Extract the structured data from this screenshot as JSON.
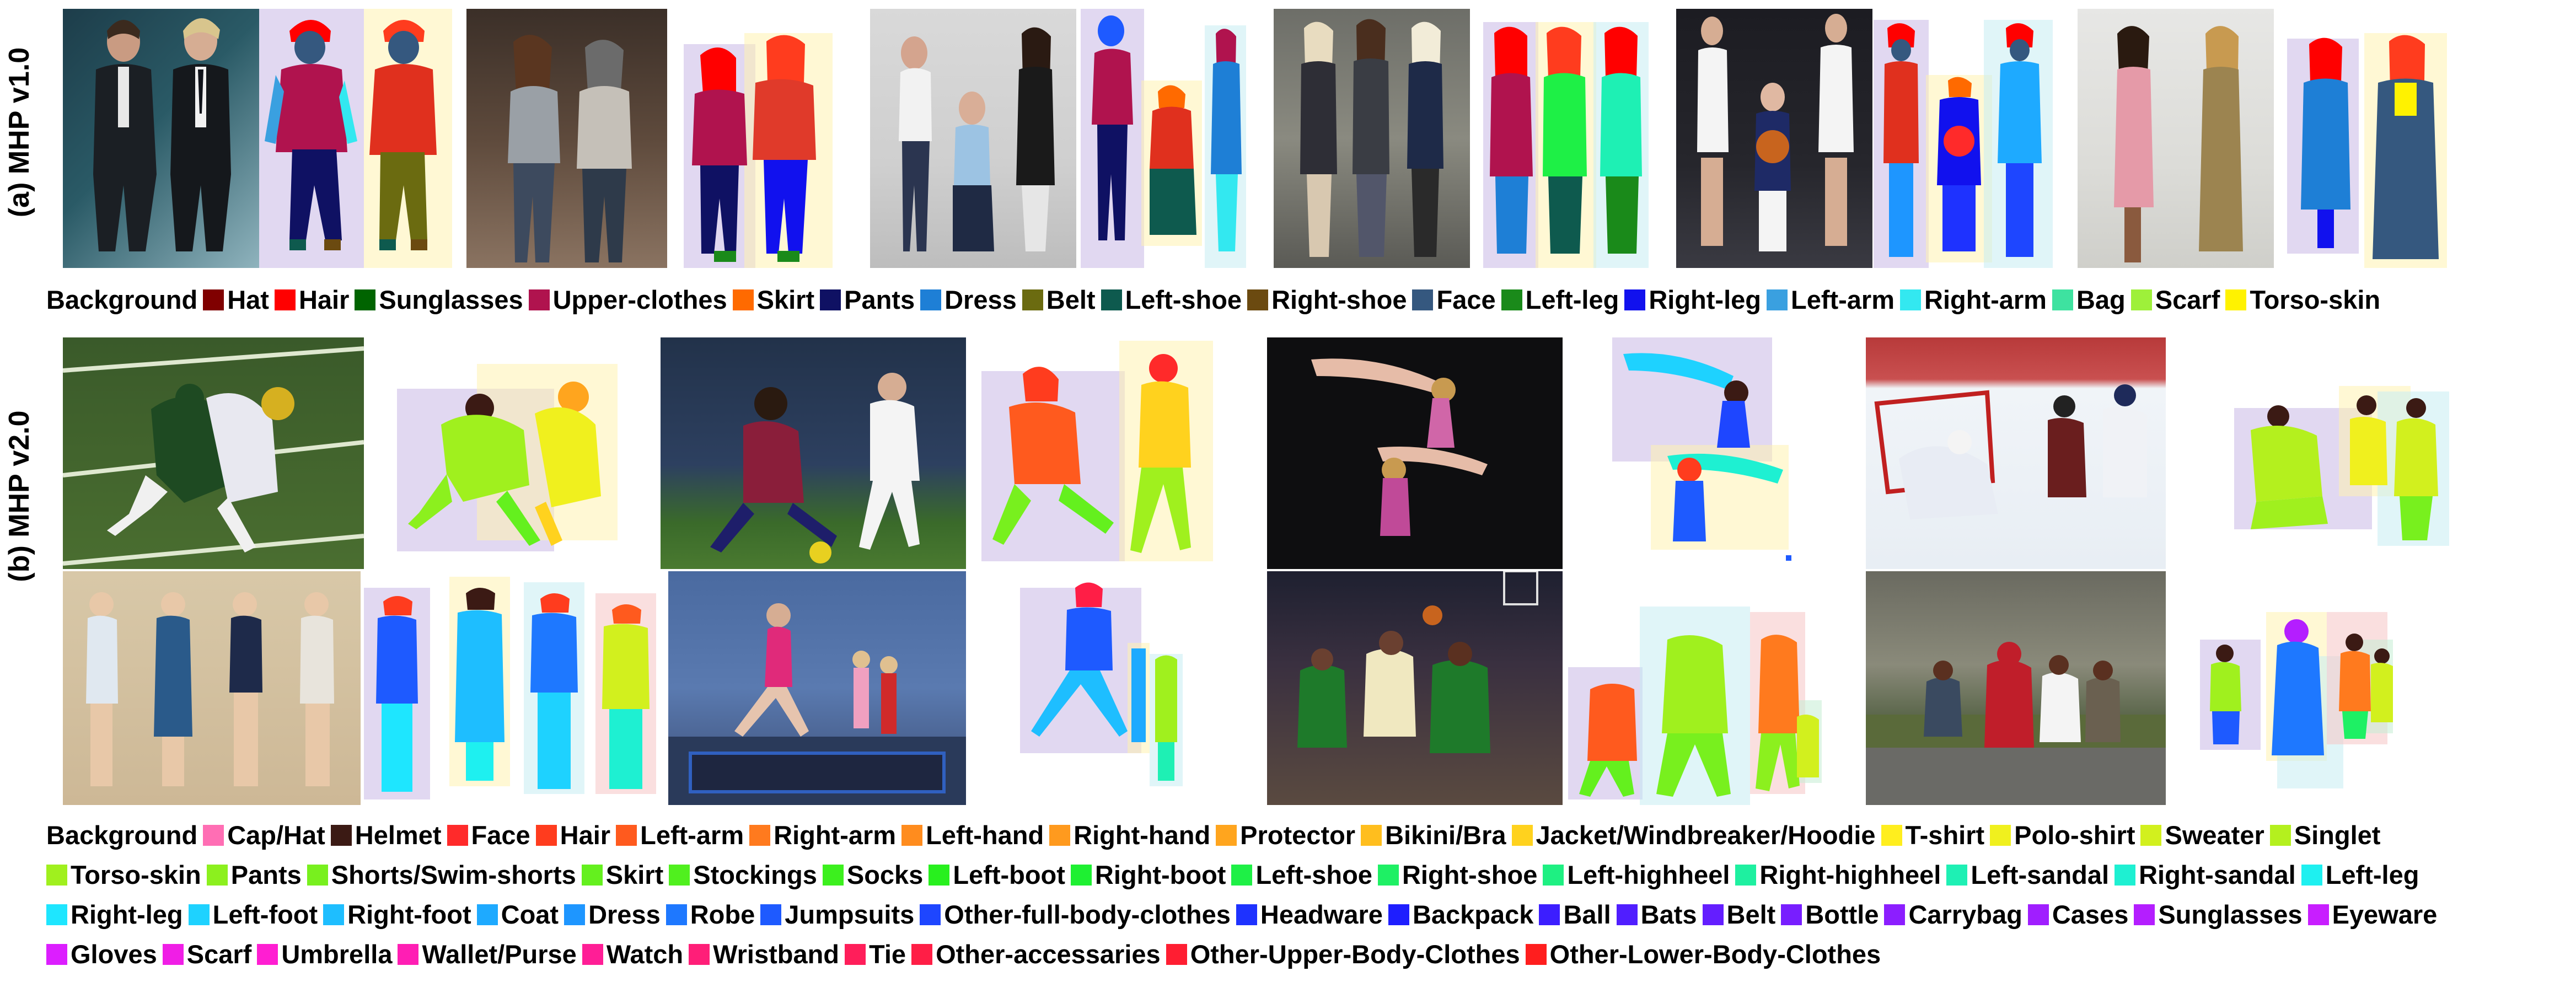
{
  "labels": {
    "v1": "(a) MHP v1.0",
    "v2": "(b) MHP v2.0"
  },
  "legend_v1": [
    {
      "label": "Background",
      "color": "#ffffff"
    },
    {
      "label": "Hat",
      "color": "#800000"
    },
    {
      "label": "Hair",
      "color": "#ff0000"
    },
    {
      "label": "Sunglasses",
      "color": "#006400"
    },
    {
      "label": "Upper-clothes",
      "color": "#b0134e"
    },
    {
      "label": "Skirt",
      "color": "#ff6a00"
    },
    {
      "label": "Pants",
      "color": "#0f1163"
    },
    {
      "label": "Dress",
      "color": "#1e7fd6"
    },
    {
      "label": "Belt",
      "color": "#6b6b10"
    },
    {
      "label": "Left-shoe",
      "color": "#0e5a4e"
    },
    {
      "label": "Right-shoe",
      "color": "#6b4a10"
    },
    {
      "label": "Face",
      "color": "#35587f"
    },
    {
      "label": "Left-leg",
      "color": "#1a8a1a"
    },
    {
      "label": "Right-leg",
      "color": "#1111ee"
    },
    {
      "label": "Left-arm",
      "color": "#3aa0e0"
    },
    {
      "label": "Right-arm",
      "color": "#33e8f0"
    },
    {
      "label": "Bag",
      "color": "#3ee2a0"
    },
    {
      "label": "Scarf",
      "color": "#9ef03a"
    },
    {
      "label": "Torso-skin",
      "color": "#fff200"
    }
  ],
  "legend_v2": [
    [
      {
        "label": "Background",
        "color": "#ffffff"
      },
      {
        "label": "Cap/Hat",
        "color": "#ff6eb4"
      },
      {
        "label": "Helmet",
        "color": "#3b1a14"
      },
      {
        "label": "Face",
        "color": "#ff2a2a"
      },
      {
        "label": "Hair",
        "color": "#ff3c1e"
      },
      {
        "label": "Left-arm",
        "color": "#ff5a1e"
      },
      {
        "label": "Right-arm",
        "color": "#ff7a1e"
      },
      {
        "label": "Left-hand",
        "color": "#ff8c1e"
      },
      {
        "label": "Right-hand",
        "color": "#ff9a1e"
      },
      {
        "label": "Protector",
        "color": "#ffa51e"
      },
      {
        "label": "Bikini/Bra",
        "color": "#ffbe1e"
      },
      {
        "label": "Jacket/Windbreaker/Hoodie",
        "color": "#ffd21e"
      },
      {
        "label": "T-shirt",
        "color": "#ffee1e"
      },
      {
        "label": "Polo-shirt",
        "color": "#f0f01e"
      },
      {
        "label": "Sweater",
        "color": "#d2f01e"
      },
      {
        "label": "Singlet",
        "color": "#b4f01e"
      }
    ],
    [
      {
        "label": "Torso-skin",
        "color": "#a0f01e"
      },
      {
        "label": "Pants",
        "color": "#8cf01e"
      },
      {
        "label": "Shorts/Swim-shorts",
        "color": "#78f01e"
      },
      {
        "label": "Skirt",
        "color": "#64f01e"
      },
      {
        "label": "Stockings",
        "color": "#50f01e"
      },
      {
        "label": "Socks",
        "color": "#3cf01e"
      },
      {
        "label": "Left-boot",
        "color": "#28f01e"
      },
      {
        "label": "Right-boot",
        "color": "#1ef032"
      },
      {
        "label": "Left-shoe",
        "color": "#1ef046"
      },
      {
        "label": "Right-shoe",
        "color": "#1ef064"
      },
      {
        "label": "Left-highheel",
        "color": "#1ef082"
      },
      {
        "label": "Right-highheel",
        "color": "#1ef0a0"
      },
      {
        "label": "Left-sandal",
        "color": "#1ef0b4"
      },
      {
        "label": "Right-sandal",
        "color": "#1ef0d2"
      },
      {
        "label": "Left-leg",
        "color": "#1ef0f0"
      }
    ],
    [
      {
        "label": "Right-leg",
        "color": "#1ee6ff"
      },
      {
        "label": "Left-foot",
        "color": "#1ed2ff"
      },
      {
        "label": "Right-foot",
        "color": "#1ebeff"
      },
      {
        "label": "Coat",
        "color": "#1eaaff"
      },
      {
        "label": "Dress",
        "color": "#1e96ff"
      },
      {
        "label": "Robe",
        "color": "#1e78ff"
      },
      {
        "label": "Jumpsuits",
        "color": "#1e5aff"
      },
      {
        "label": "Other-full-body-clothes",
        "color": "#1e46ff"
      },
      {
        "label": "Headware",
        "color": "#1e32ff"
      },
      {
        "label": "Backpack",
        "color": "#1e1eff"
      },
      {
        "label": "Ball",
        "color": "#3c1eff"
      },
      {
        "label": "Bats",
        "color": "#501eff"
      },
      {
        "label": "Belt",
        "color": "#641eff"
      },
      {
        "label": "Bottle",
        "color": "#781eff"
      },
      {
        "label": "Carrybag",
        "color": "#8c1eff"
      },
      {
        "label": "Cases",
        "color": "#a01eff"
      },
      {
        "label": "Sunglasses",
        "color": "#b41eff"
      },
      {
        "label": "Eyeware",
        "color": "#c81eff"
      }
    ],
    [
      {
        "label": "Gloves",
        "color": "#dc1eff"
      },
      {
        "label": "Scarf",
        "color": "#f01ee6"
      },
      {
        "label": "Umbrella",
        "color": "#ff1ed2"
      },
      {
        "label": "Wallet/Purse",
        "color": "#ff1eb4"
      },
      {
        "label": "Watch",
        "color": "#ff1e96"
      },
      {
        "label": "Wristband",
        "color": "#ff1e78"
      },
      {
        "label": "Tie",
        "color": "#ff1e5a"
      },
      {
        "label": "Other-accessaries",
        "color": "#ff1e46"
      },
      {
        "label": "Other-Upper-Body-Clothes",
        "color": "#ff1e32"
      },
      {
        "label": "Other-Lower-Body-Clothes",
        "color": "#ff1e1e"
      }
    ]
  ]
}
